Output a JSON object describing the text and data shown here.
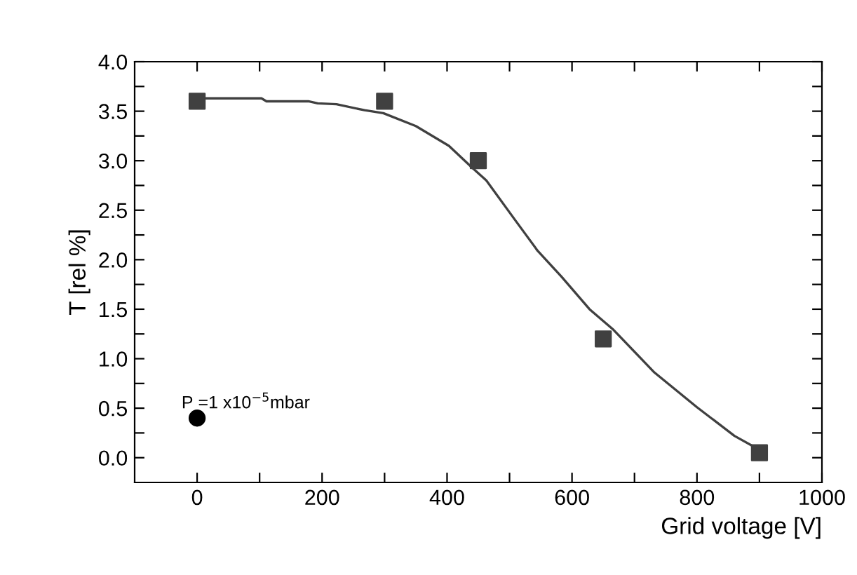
{
  "chart_data": {
    "type": "scatter",
    "xlabel": "Grid voltage [V]",
    "ylabel": "T [rel %]",
    "annotations": [
      {
        "text": "P =1 x10$^{−5}$mbar",
        "x": 0,
        "y": 0.4
      }
    ],
    "xlim": [
      -100,
      1000
    ],
    "ylim": [
      -0.25,
      4.0
    ],
    "xticks": [
      0,
      {
        "value": 100,
        "label": null
      },
      200,
      {
        "value": 300,
        "label": null
      },
      400,
      {
        "value": 500,
        "label": null
      },
      600,
      {
        "value": 700,
        "label": null
      },
      800,
      {
        "value": 900,
        "label": null
      },
      1000
    ],
    "yticks": [
      {
        "value": 0,
        "label": "0.0"
      },
      {
        "value": 0.25,
        "label": null
      },
      {
        "value": 0.5,
        "label": "0.5"
      },
      {
        "value": 0.75,
        "label": null
      },
      {
        "value": 1.0,
        "label": "1.0"
      },
      {
        "value": 1.25,
        "label": null
      },
      {
        "value": 1.5,
        "label": "1.5"
      },
      {
        "value": 1.75,
        "label": null
      },
      {
        "value": 2.0,
        "label": "2.0"
      },
      {
        "value": 2.25,
        "label": null
      },
      {
        "value": 2.5,
        "label": "2.5"
      },
      {
        "value": 2.75,
        "label": null
      },
      {
        "value": 3.0,
        "label": "3.0"
      },
      {
        "value": 3.25,
        "label": null
      },
      {
        "value": 3.5,
        "label": "3.5"
      },
      {
        "value": 3.75,
        "label": null
      },
      {
        "value": 4.0,
        "label": "4.0"
      }
    ],
    "grid": false,
    "legend": false,
    "series": [
      {
        "type": "line",
        "color": "#404040",
        "marker": "none",
        "line_style": "solid",
        "x": [
          0,
          103,
          111,
          178,
          193,
          223,
          268,
          298,
          350,
          403,
          440,
          463,
          509,
          545,
          583,
          628,
          665,
          732,
          800,
          860,
          897
        ],
        "values": [
          3.63,
          3.63,
          3.6,
          3.6,
          3.58,
          3.57,
          3.51,
          3.48,
          3.35,
          3.15,
          2.93,
          2.8,
          2.4,
          2.09,
          1.83,
          1.5,
          1.3,
          0.86,
          0.51,
          0.22,
          0.09
        ]
      },
      {
        "color": "#404040",
        "marker": "square",
        "x": [
          0,
          300,
          450,
          650,
          900
        ],
        "values": [
          3.6,
          3.6,
          3.0,
          1.2,
          0.05
        ]
      },
      {
        "color": "#000000",
        "marker": "circle",
        "x": [
          0
        ],
        "values": [
          0.4
        ]
      }
    ]
  }
}
